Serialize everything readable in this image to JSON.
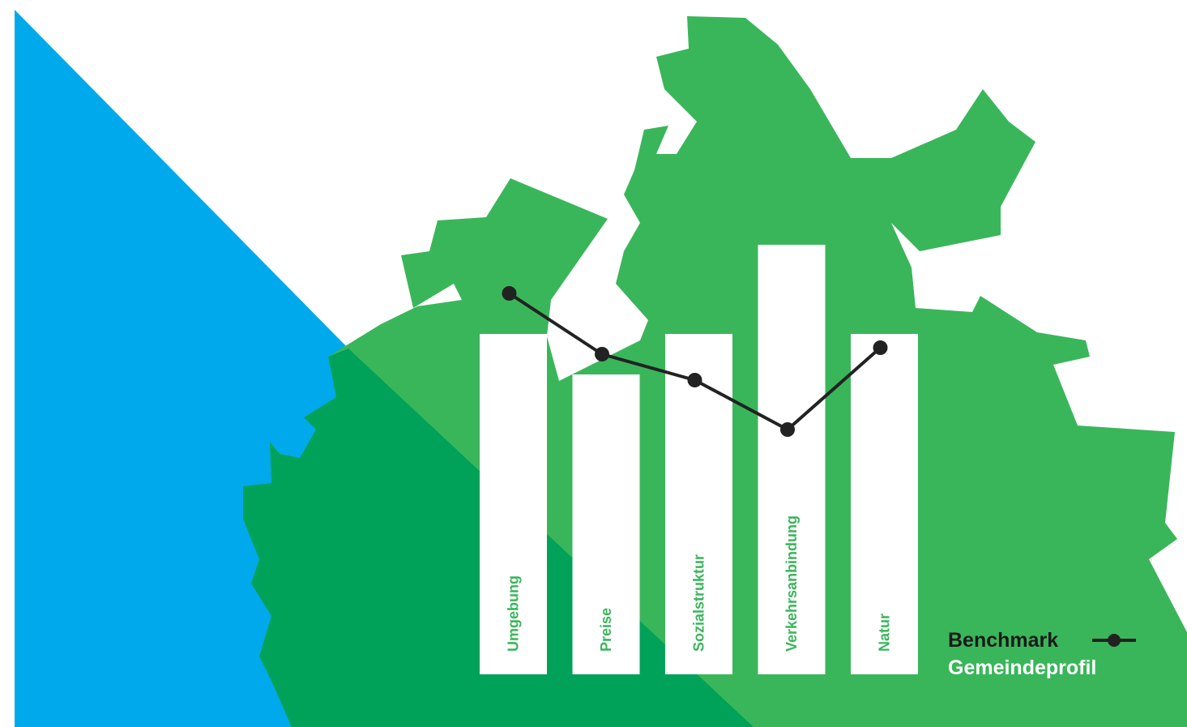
{
  "colors": {
    "background": "#ffffff",
    "blue": "#00a9ec",
    "green_light": "#3ab65a",
    "green_dark": "#00a25a",
    "bar": "#ffffff",
    "bar_label": "#3ab65a",
    "benchmark_line": "#222222",
    "legend_benchmark": "#1a1a1a",
    "legend_profile": "#ffffff"
  },
  "legend": {
    "benchmark_label": "Benchmark",
    "profile_label": "Gemeindeprofil"
  },
  "chart_data": {
    "type": "bar",
    "categories": [
      "Umgebung",
      "Preise",
      "Sozialstruktur",
      "Verkehrsanbindung",
      "Natur"
    ],
    "series": [
      {
        "name": "Gemeindeprofil",
        "type": "bar",
        "values": [
          4.2,
          3.7,
          4.2,
          5.3,
          4.2
        ]
      },
      {
        "name": "Benchmark",
        "type": "line",
        "values": [
          4.7,
          3.95,
          3.63,
          3.02,
          4.03
        ]
      }
    ],
    "ylim": [
      0,
      6
    ],
    "grid": false,
    "legend_position": "bottom-right",
    "title": "",
    "xlabel": "",
    "ylabel": ""
  }
}
